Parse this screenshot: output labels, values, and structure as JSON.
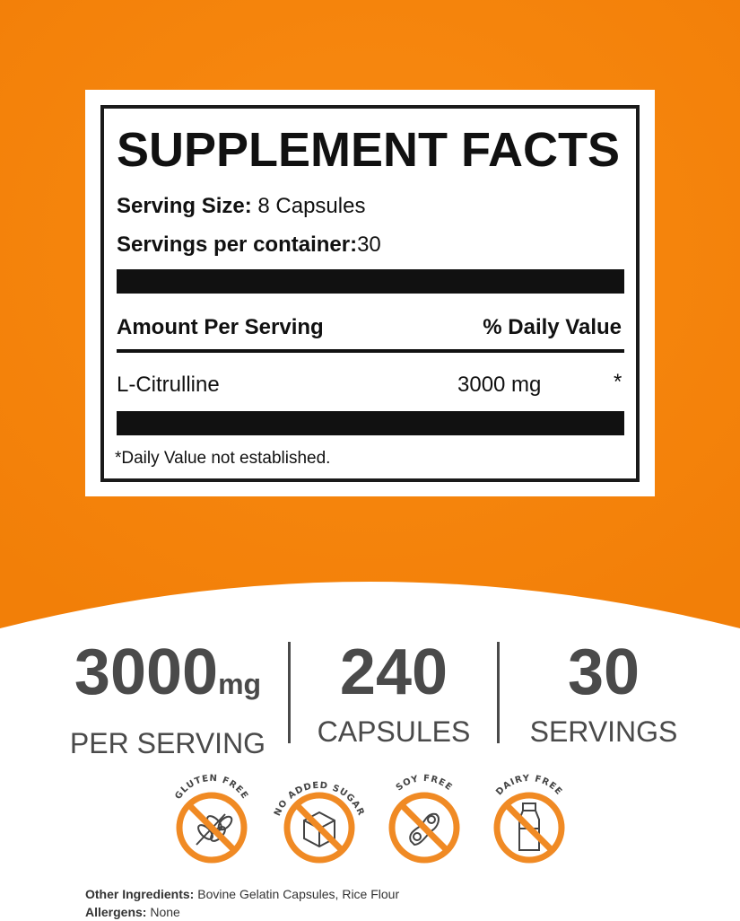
{
  "label": {
    "title": "SUPPLEMENT FACTS",
    "serving_size_label": "Serving Size:",
    "serving_size_value": "8 Capsules",
    "servings_label": "Servings per container:",
    "servings_value": "30",
    "amount_header": "Amount Per Serving",
    "dv_header": "% Daily Value",
    "ingredient": {
      "name": "L-Citrulline",
      "amount": "3000 mg",
      "dv": "*"
    },
    "footnote": "*Daily Value not established."
  },
  "stats": [
    {
      "value": "3000",
      "unit": "mg",
      "label": "PER SERVING"
    },
    {
      "value": "240",
      "unit": "",
      "label": "CAPSULES"
    },
    {
      "value": "30",
      "unit": "",
      "label": "SERVINGS"
    }
  ],
  "badges": [
    {
      "text": "GLUTEN FREE",
      "icon": "wheat-icon"
    },
    {
      "text": "NO ADDED SUGAR",
      "icon": "sugar-cube-icon"
    },
    {
      "text": "SOY FREE",
      "icon": "soybean-icon"
    },
    {
      "text": "DAIRY FREE",
      "icon": "milk-bottle-icon"
    }
  ],
  "footer": {
    "other_label": "Other Ingredients:",
    "other_value": " Bovine Gelatin Capsules, Rice Flour",
    "allergens_label": "Allergens:",
    "allergens_value": " None"
  },
  "colors": {
    "orange": "#F7870F",
    "badge_orange": "#F08A24",
    "text_gray": "#4A4A4A"
  }
}
